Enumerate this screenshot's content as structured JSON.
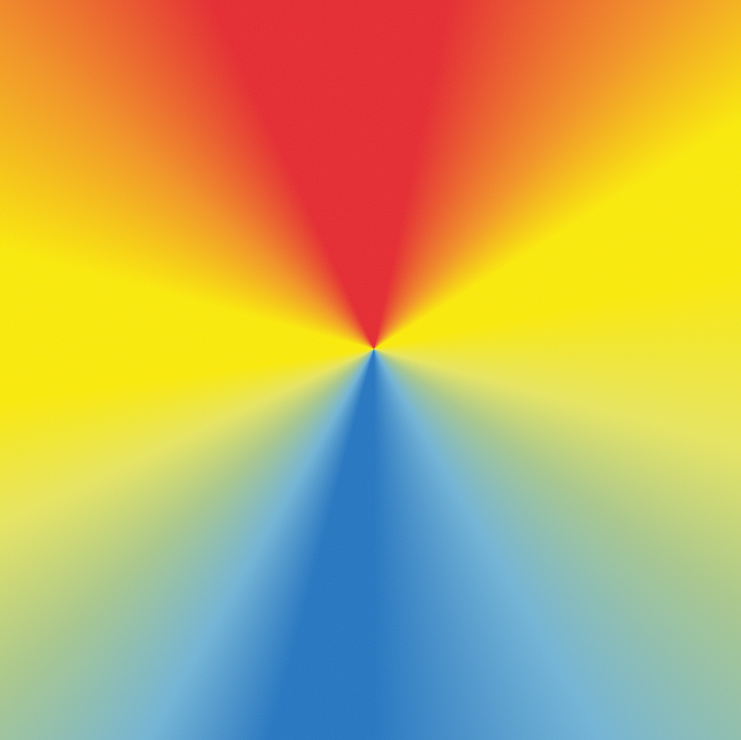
{
  "image": {
    "subject": "conic-color-gradient",
    "colors": {
      "red": "#e8232a",
      "orange": "#f6921e",
      "yellow": "#ffed00",
      "pale_yellow": "#eae85c",
      "green_grey": "#a9c98a",
      "light_blue": "#6eb4d8",
      "blue": "#1e73c2"
    }
  }
}
